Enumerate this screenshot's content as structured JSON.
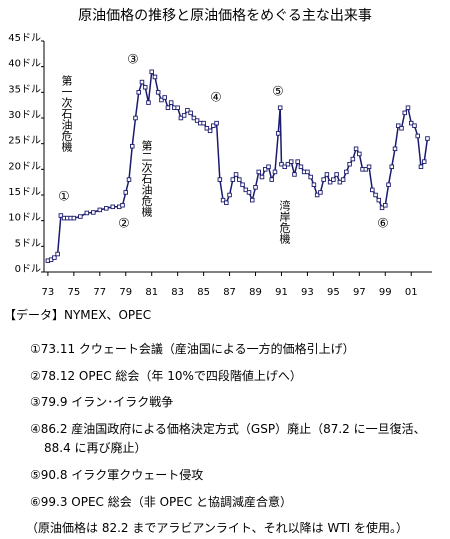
{
  "chart_data": {
    "type": "line",
    "title": "原油価格の推移と原油価格をめぐる主な出来事",
    "x": [
      1973.0,
      1973.25,
      1973.5,
      1973.75,
      1974.0,
      1974.25,
      1974.5,
      1974.75,
      1975.0,
      1975.5,
      1976.0,
      1976.5,
      1977.0,
      1977.5,
      1978.0,
      1978.5,
      1978.75,
      1979.0,
      1979.25,
      1979.5,
      1979.75,
      1980.0,
      1980.25,
      1980.5,
      1980.75,
      1981.0,
      1981.25,
      1981.5,
      1981.75,
      1982.0,
      1982.25,
      1982.5,
      1982.75,
      1983.0,
      1983.25,
      1983.5,
      1983.75,
      1984.0,
      1984.25,
      1984.5,
      1984.75,
      1985.0,
      1985.25,
      1985.5,
      1985.75,
      1986.0,
      1986.25,
      1986.5,
      1986.75,
      1987.0,
      1987.25,
      1987.5,
      1987.75,
      1988.0,
      1988.25,
      1988.5,
      1988.75,
      1989.0,
      1989.25,
      1989.5,
      1989.75,
      1990.0,
      1990.25,
      1990.5,
      1990.75,
      1990.9,
      1991.0,
      1991.25,
      1991.5,
      1991.75,
      1992.0,
      1992.25,
      1992.5,
      1992.75,
      1993.0,
      1993.25,
      1993.5,
      1993.75,
      1994.0,
      1994.25,
      1994.5,
      1994.75,
      1995.0,
      1995.25,
      1995.5,
      1995.75,
      1996.0,
      1996.25,
      1996.5,
      1996.75,
      1997.0,
      1997.25,
      1997.5,
      1997.75,
      1998.0,
      1998.25,
      1998.5,
      1998.75,
      1999.0,
      1999.25,
      1999.5,
      1999.75,
      2000.0,
      2000.25,
      2000.5,
      2000.75,
      2001.0,
      2001.25,
      2001.5,
      2001.75,
      2002.0,
      2002.25
    ],
    "series": [
      {
        "color": "#1a1a6e",
        "values": [
          2.2,
          2.4,
          2.8,
          3.5,
          11,
          10.5,
          10.5,
          10.5,
          10.5,
          10.8,
          11.5,
          11.6,
          12.1,
          12.4,
          12.7,
          12.7,
          13,
          15.5,
          18,
          24.5,
          30,
          35,
          37,
          36,
          33,
          39,
          38,
          35,
          33.5,
          34,
          32,
          33,
          32,
          32,
          30,
          30.5,
          31.5,
          31,
          30,
          29.5,
          29,
          29,
          28,
          27.5,
          28.5,
          29,
          18,
          14,
          13.5,
          15,
          18,
          19,
          18,
          17,
          16,
          15.5,
          14,
          16.5,
          19.5,
          18.5,
          20,
          20.5,
          18,
          19.5,
          27,
          32,
          21,
          20.5,
          21,
          21.5,
          19,
          21.5,
          20.5,
          19.5,
          19.5,
          18.5,
          17,
          15,
          15.5,
          18,
          19,
          17.5,
          18,
          19,
          17.5,
          18,
          19.5,
          21,
          22,
          24,
          23,
          20,
          20,
          20.5,
          16,
          15,
          14,
          12.5,
          13,
          17,
          20.5,
          24,
          28.5,
          28,
          31,
          32,
          29,
          28.5,
          26.5,
          20.5,
          21.5,
          26
        ]
      }
    ],
    "xlim": [
      1972.7,
      2002.6
    ],
    "xticks": [
      {
        "value": 1973,
        "label": "73"
      },
      {
        "value": 1975,
        "label": "75"
      },
      {
        "value": 1977,
        "label": "77"
      },
      {
        "value": 1979,
        "label": "79"
      },
      {
        "value": 1981,
        "label": "81"
      },
      {
        "value": 1983,
        "label": "83"
      },
      {
        "value": 1985,
        "label": "85"
      },
      {
        "value": 1987,
        "label": "87"
      },
      {
        "value": 1989,
        "label": "89"
      },
      {
        "value": 1991,
        "label": "91"
      },
      {
        "value": 1993,
        "label": "93"
      },
      {
        "value": 1995,
        "label": "95"
      },
      {
        "value": 1997,
        "label": "97"
      },
      {
        "value": 1999,
        "label": "99"
      },
      {
        "value": 2001,
        "label": "01"
      }
    ],
    "ylim": [
      0,
      45
    ],
    "yticks": [
      {
        "value": 0,
        "label": "0ドル"
      },
      {
        "value": 5,
        "label": "5ドル"
      },
      {
        "value": 10,
        "label": "10ドル"
      },
      {
        "value": 15,
        "label": "15ドル"
      },
      {
        "value": 20,
        "label": "20ドル"
      },
      {
        "value": 25,
        "label": "25ドル"
      },
      {
        "value": 30,
        "label": "30ドル"
      },
      {
        "value": 35,
        "label": "35ドル"
      },
      {
        "value": 40,
        "label": "40ドル"
      },
      {
        "value": 45,
        "label": "45ドル"
      }
    ],
    "grid": false,
    "annotations": [
      "①",
      "②",
      "③",
      "④",
      "⑤",
      "⑥",
      "第一次石油危機",
      "第二次石油危機",
      "湾岸危機"
    ]
  },
  "notes": [
    "【データ】NYMEX、OPEC",
    "①73.11 クウェート会議（産油国による一方的価格引上げ）",
    "②78.12 OPEC 総会（年 10%で四段階値上げへ）",
    "③79.9 イラン･イラク戦争",
    "④86.2 産油国政府による価格決定方式（GSP）廃止（87.2 に一旦復活、88.4 に再び廃止）",
    "⑤90.8 イラク軍クウェート侵攻",
    "⑥99.3 OPEC 総会（非 OPEC と協調減産合意）",
    "（原油価格は 82.2 までアラビアンライト、それ以降は WTI を使用。）"
  ]
}
